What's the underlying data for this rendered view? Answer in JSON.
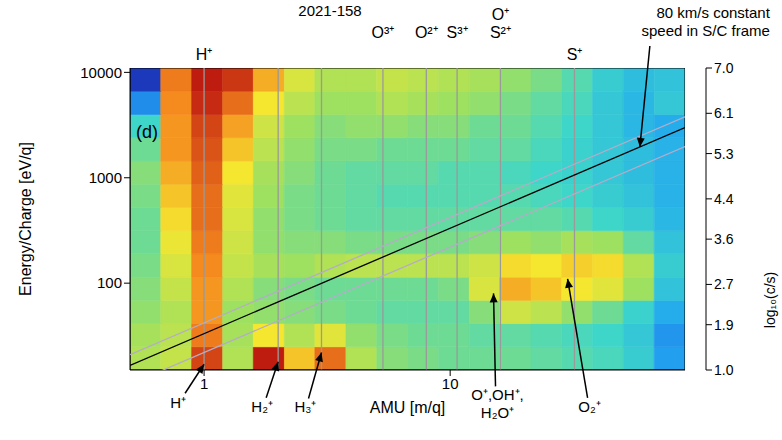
{
  "chart_data": {
    "type": "heatmap",
    "title": "2021-158",
    "panel_label": "(d)",
    "x_label": "AMU [m/q]",
    "y_label": "Energy/Charge [eV/q]",
    "log": true,
    "xlim": [
      0.5,
      90
    ],
    "xticks": [
      1,
      10
    ],
    "ylim": [
      15,
      11000
    ],
    "yticks": [
      100,
      1000,
      10000
    ],
    "x_edges": [
      0.5,
      0.667,
      0.89,
      1.19,
      1.585,
      2.12,
      2.82,
      3.77,
      5.03,
      6.71,
      8.95,
      11.95,
      15.9,
      21.3,
      28.4,
      37.9,
      50.5,
      67.5,
      90
    ],
    "y_edges": [
      15,
      24.9,
      41.4,
      68.7,
      114,
      190,
      315,
      523,
      869,
      1444,
      2399,
      3985,
      6620,
      11000
    ],
    "cells": [
      [
        4.6,
        4.8,
        6.6,
        4.6,
        6.9,
        5.6,
        6.3,
        4.6,
        4.2,
        4.1,
        4.0,
        4.0,
        4.0,
        3.9,
        3.8,
        3.7,
        3.4,
        2.6
      ],
      [
        4.5,
        4.7,
        6.2,
        4.5,
        5.3,
        4.6,
        5.1,
        4.3,
        4.1,
        4.0,
        4.0,
        3.9,
        3.9,
        3.8,
        3.7,
        3.6,
        3.3,
        2.5
      ],
      [
        4.3,
        4.6,
        6.0,
        4.4,
        4.3,
        4.2,
        4.1,
        4.0,
        3.9,
        3.9,
        3.9,
        4.2,
        4.9,
        4.7,
        4.3,
        4.0,
        3.5,
        2.8
      ],
      [
        4.2,
        4.8,
        6.0,
        4.6,
        4.2,
        4.1,
        4.0,
        4.0,
        4.0,
        4.0,
        4.1,
        5.0,
        5.8,
        5.6,
        5.3,
        5.1,
        4.4,
        3.2
      ],
      [
        4.1,
        5.0,
        6.1,
        4.8,
        4.5,
        4.4,
        4.6,
        4.7,
        4.7,
        4.7,
        4.7,
        4.9,
        5.4,
        5.3,
        5.5,
        5.4,
        4.6,
        3.4
      ],
      [
        4.0,
        5.2,
        6.2,
        4.9,
        4.3,
        4.2,
        4.2,
        4.1,
        4.1,
        4.1,
        4.1,
        4.2,
        4.4,
        4.3,
        4.5,
        4.4,
        3.9,
        3.2
      ],
      [
        4.0,
        5.4,
        6.3,
        5.0,
        4.3,
        4.1,
        4.0,
        3.9,
        3.9,
        3.9,
        3.9,
        3.9,
        3.9,
        3.9,
        3.8,
        3.6,
        3.4,
        3.0
      ],
      [
        4.1,
        5.6,
        6.3,
        5.1,
        4.4,
        4.1,
        4.0,
        3.9,
        3.8,
        3.8,
        3.8,
        3.8,
        3.8,
        3.7,
        3.6,
        3.4,
        3.2,
        2.9
      ],
      [
        4.2,
        5.8,
        6.4,
        5.3,
        4.5,
        4.2,
        4.0,
        3.9,
        3.9,
        3.9,
        3.8,
        3.8,
        3.7,
        3.6,
        3.5,
        3.3,
        3.1,
        2.9
      ],
      [
        4.0,
        6.0,
        6.5,
        5.6,
        4.7,
        4.3,
        4.1,
        4.1,
        4.0,
        4.0,
        4.0,
        3.9,
        3.9,
        3.7,
        3.5,
        3.3,
        3.1,
        2.9
      ],
      [
        3.6,
        6.0,
        6.6,
        5.9,
        4.9,
        4.4,
        4.2,
        4.3,
        4.3,
        4.2,
        4.2,
        4.0,
        4.0,
        3.8,
        3.6,
        3.3,
        3.0,
        2.8
      ],
      [
        2.4,
        6.1,
        6.8,
        6.3,
        5.3,
        4.7,
        4.4,
        4.4,
        4.6,
        4.5,
        4.4,
        4.3,
        4.1,
        3.9,
        3.7,
        3.3,
        3.0,
        3.3
      ],
      [
        1.4,
        6.2,
        6.9,
        6.7,
        5.8,
        5.0,
        4.6,
        4.6,
        4.8,
        4.7,
        4.6,
        4.5,
        4.3,
        4.1,
        3.8,
        3.4,
        3.1,
        3.2
      ]
    ],
    "colorbar": {
      "label": "log₁₀(c/s)",
      "range": [
        1,
        7
      ],
      "ticks": [
        {
          "value": 1,
          "label": "1.0"
        },
        1.9,
        2.7,
        3.6,
        4.4,
        5.3,
        6.1,
        {
          "value": 7,
          "label": "7.0"
        }
      ]
    },
    "species_lines": [
      {
        "x": 1,
        "labels": [
          "H⁺"
        ]
      },
      {
        "x": 2
      },
      {
        "x": 3
      },
      {
        "x": 5.33,
        "labels": [
          "O³⁺"
        ]
      },
      {
        "x": 8,
        "labels": [
          "O²⁺"
        ]
      },
      {
        "x": 10.67,
        "labels": [
          "S³⁺"
        ]
      },
      {
        "x": 16,
        "labels": [
          "O⁺",
          "S²⁺"
        ]
      },
      {
        "x": 32,
        "labels": [
          "S⁺"
        ]
      }
    ],
    "speed_lines": [
      {
        "color": "#000000",
        "x": [
          0.5,
          90
        ],
        "y": [
          16.6,
          2988
        ]
      },
      {
        "color": "#b4acc8",
        "x": [
          0.5,
          90
        ],
        "y": [
          21,
          3790
        ]
      },
      {
        "color": "#b4acc8",
        "x": [
          0.5,
          90
        ],
        "y": [
          11,
          1973
        ]
      }
    ],
    "annotations": [
      {
        "text": "80 km/s constant speed in S/C frame",
        "x": 59,
        "y": 1960
      },
      {
        "text": "H⁺",
        "x": 1,
        "y": 17
      },
      {
        "text": "H₂⁺",
        "x": 2,
        "y": 18
      },
      {
        "text": "H₃⁺",
        "x": 3,
        "y": 22
      },
      {
        "text": "O⁺,OH⁺, H₂O⁺",
        "x": 15,
        "y": 80
      },
      {
        "text": "O₂⁺",
        "x": 30,
        "y": 110
      }
    ]
  }
}
